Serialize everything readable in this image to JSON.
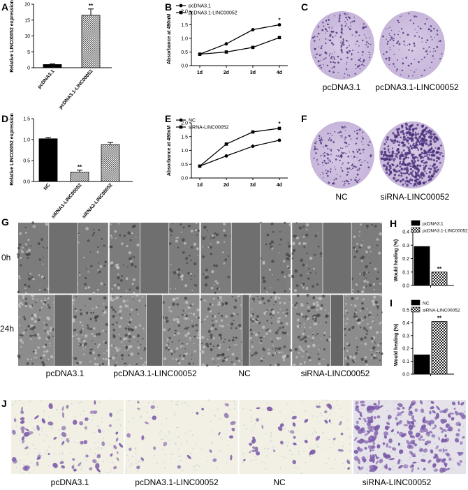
{
  "panels": [
    "A",
    "B",
    "C",
    "D",
    "E",
    "F",
    "G",
    "H",
    "I",
    "J"
  ],
  "chart_data": [
    {
      "id": "A",
      "type": "bar",
      "ylabel": "Relative LINC00052 expression",
      "categories": [
        "pcDNA3.1",
        "pcDNA3.1-LINC00052"
      ],
      "values": [
        1,
        16.5
      ],
      "errors": [
        0.2,
        2
      ],
      "yticks": [
        "0",
        "5",
        "10",
        "15",
        "20"
      ],
      "ylim": [
        0,
        20
      ],
      "annotations": [
        "",
        "**"
      ]
    },
    {
      "id": "B",
      "type": "line",
      "ylabel": "Absorbance at 490nM",
      "categories": [
        "1d",
        "2d",
        "3d",
        "4d"
      ],
      "yticks": [
        "0.0",
        "0.5",
        "1.0",
        "1.5",
        "2.0"
      ],
      "ylim": [
        0,
        2
      ],
      "series": [
        {
          "name": "pcDNA3.1",
          "values": [
            0.42,
            0.8,
            1.32,
            1.5
          ]
        },
        {
          "name": "pcDNA3.1-LINC00052",
          "values": [
            0.42,
            0.5,
            0.67,
            1.03
          ]
        }
      ],
      "annotations": [
        "",
        "",
        "",
        "*"
      ]
    },
    {
      "id": "D",
      "type": "bar",
      "ylabel": "Relative LINC00052 expression",
      "categories": [
        "NC",
        "siRNA1-LINC00052",
        "siRNA2-LINC00052"
      ],
      "values": [
        1.02,
        0.22,
        0.88
      ],
      "errors": [
        0.03,
        0.05,
        0.05
      ],
      "yticks": [
        "0.0",
        "0.5",
        "1.0",
        "1.5"
      ],
      "ylim": [
        0,
        1.5
      ],
      "annotations": [
        "",
        "**",
        ""
      ]
    },
    {
      "id": "E",
      "type": "line",
      "ylabel": "Absorbance at 490nM",
      "categories": [
        "1d",
        "2d",
        "3d",
        "4d"
      ],
      "yticks": [
        "0.0",
        "0.5",
        "1.0",
        "1.5",
        "2.0"
      ],
      "ylim": [
        0,
        2
      ],
      "series": [
        {
          "name": "NC",
          "values": [
            0.43,
            0.8,
            1.15,
            1.37
          ]
        },
        {
          "name": "siRNA-LINC00052",
          "values": [
            0.43,
            1.23,
            1.67,
            1.8
          ]
        }
      ],
      "annotations": [
        "",
        "",
        "",
        "*"
      ]
    },
    {
      "id": "H",
      "type": "bar",
      "ylabel": "Would healing (%)",
      "categories": [
        "pcDNA3.1",
        "pcDNA3.1-LINC00052"
      ],
      "legend": [
        "pcDNA3.1",
        "pcDNA3.1-LINC00052"
      ],
      "values": [
        0.29,
        0.1
      ],
      "yticks": [
        "0.0",
        "0.1",
        "0.2",
        "0.3",
        "0.4"
      ],
      "ylim": [
        0,
        0.4
      ],
      "annotations": [
        "",
        "**"
      ]
    },
    {
      "id": "I",
      "type": "bar",
      "ylabel": "Would healing (%)",
      "categories": [
        "NC",
        "siRNA-LINC00052"
      ],
      "legend": [
        "NC",
        "siRNA-LINC00052"
      ],
      "values": [
        0.15,
        0.41
      ],
      "yticks": [
        "0.0",
        "0.1",
        "0.2",
        "0.3",
        "0.4",
        "0.5"
      ],
      "ylim": [
        0,
        0.5
      ],
      "annotations": [
        "",
        "**"
      ]
    }
  ],
  "captions": {
    "c1": "pcDNA3.1",
    "c2": "pcDNA3.1-LINC00052",
    "f1": "NC",
    "f2": "siRNA-LINC00052",
    "g_row0": "0h",
    "g_row1": "24h",
    "g1": "pcDNA3.1",
    "g2": "pcDNA3.1-LINC00052",
    "g3": "NC",
    "g4": "siRNA-LINC00052",
    "j1": "pcDNA3.1",
    "j2": "pcDNA3.1-LINC00052",
    "j3": "NC",
    "j4": "siRNA-LINC00052"
  },
  "colors": {
    "colony": "#c7b6da",
    "colony_edge": "#a993c5",
    "scratch_bg": "#8a8a8a",
    "transwell_bg": "#f2f0e4",
    "stain": "#7a5aa8"
  }
}
